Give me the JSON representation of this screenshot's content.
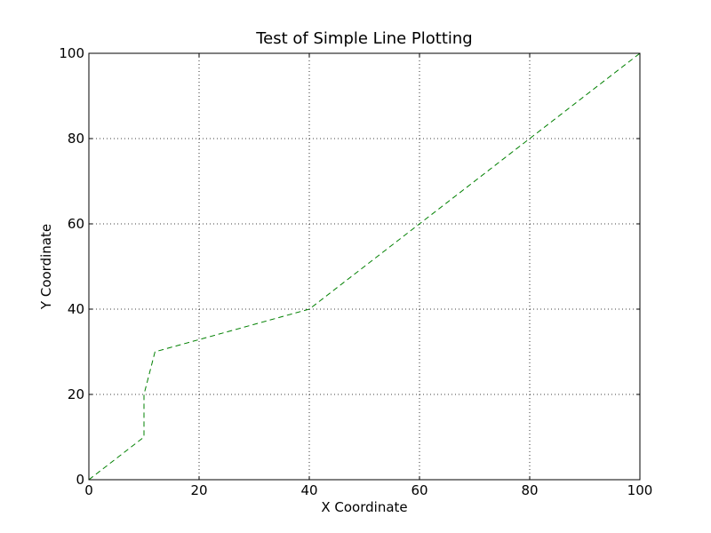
{
  "chart_data": {
    "type": "line",
    "title": "Test of Simple Line Plotting",
    "xlabel": "X Coordinate",
    "ylabel": "Y Coordinate",
    "xlim": [
      0,
      100
    ],
    "ylim": [
      0,
      100
    ],
    "xticks": [
      "0",
      "20",
      "40",
      "60",
      "80",
      "100"
    ],
    "yticks": [
      "0",
      "20",
      "40",
      "60",
      "80",
      "100"
    ],
    "grid": true,
    "legend": "none",
    "series": [
      {
        "x": [
          0,
          10,
          10,
          12,
          40,
          100
        ],
        "y": [
          0,
          10,
          20,
          30,
          40,
          100
        ],
        "color": "#008000",
        "line_style": "dashed"
      }
    ]
  }
}
